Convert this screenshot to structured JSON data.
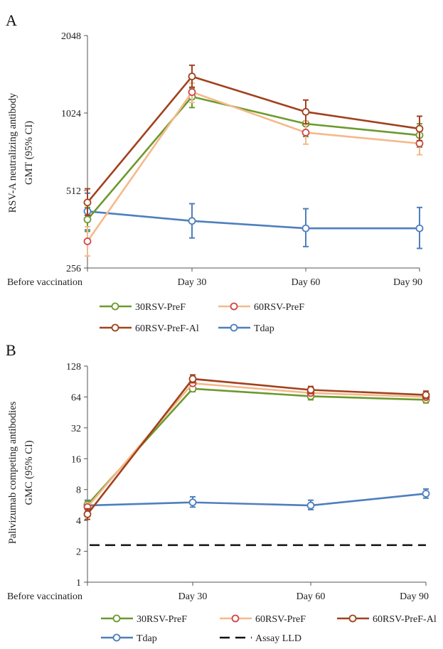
{
  "chart_data": [
    {
      "panel": "A",
      "type": "line",
      "y_scale": "log2",
      "ylabel": [
        "RSV-A neutralizing antibody",
        "GMT (95% CI)"
      ],
      "xlabel": "",
      "categories": [
        "Before vaccination",
        "Day 30",
        "Day 60",
        "Day 90"
      ],
      "y_ticks": [
        256,
        512,
        1024,
        2048
      ],
      "ylim": [
        256,
        2048
      ],
      "grid": false,
      "legend_position": "bottom",
      "series": [
        {
          "name": "30RSV-PreF",
          "color": "#6b9a2e",
          "values": [
            395,
            1185,
            930,
            840
          ],
          "ci_low": [
            355,
            1075,
            830,
            755
          ],
          "ci_high": [
            440,
            1280,
            1025,
            930
          ]
        },
        {
          "name": "60RSV-PreF",
          "color": "#f5b98a",
          "marker_color": "#d0454b",
          "values": [
            325,
            1235,
            860,
            780
          ],
          "ci_low": [
            285,
            1125,
            775,
            705
          ],
          "ci_high": [
            370,
            1340,
            955,
            865
          ]
        },
        {
          "name": "60RSV-PreF-Al",
          "color": "#a0421e",
          "values": [
            460,
            1420,
            1035,
            890
          ],
          "ci_low": [
            410,
            1290,
            930,
            800
          ],
          "ci_high": [
            520,
            1570,
            1150,
            995
          ]
        },
        {
          "name": "Tdap",
          "color": "#4e7fbd",
          "values": [
            425,
            390,
            365,
            365
          ],
          "ci_low": [
            360,
            335,
            310,
            305
          ],
          "ci_high": [
            500,
            455,
            435,
            440
          ]
        }
      ]
    },
    {
      "panel": "B",
      "type": "line",
      "y_scale": "log2",
      "ylabel": [
        "Palivizumab competing antibodies",
        "GMC (95% CI)"
      ],
      "xlabel": "",
      "categories": [
        "Before vaccination",
        "Day 30",
        "Day 60",
        "Day 90"
      ],
      "y_ticks": [
        1,
        2,
        4,
        8,
        16,
        32,
        64,
        128
      ],
      "ylim": [
        1,
        128
      ],
      "grid": false,
      "legend_position": "bottom",
      "reference_line": {
        "name": "Assay LLD",
        "value": 2.3,
        "color": "#111111"
      },
      "series": [
        {
          "name": "30RSV-PreF",
          "color": "#6b9a2e",
          "values": [
            5.7,
            77,
            65,
            60
          ],
          "ci_low": [
            5.2,
            72,
            60,
            56
          ],
          "ci_high": [
            6.2,
            83,
            70,
            65
          ]
        },
        {
          "name": "60RSV-PreF",
          "color": "#f5b98a",
          "marker_color": "#d0454b",
          "values": [
            5.4,
            87,
            70,
            64
          ],
          "ci_low": [
            4.9,
            81,
            65,
            59
          ],
          "ci_high": [
            5.9,
            94,
            76,
            69
          ]
        },
        {
          "name": "60RSV-PreF-Al",
          "color": "#a0421e",
          "values": [
            4.6,
            96,
            75,
            67
          ],
          "ci_low": [
            4.1,
            88,
            69,
            62
          ],
          "ci_high": [
            5.2,
            105,
            81,
            73
          ]
        },
        {
          "name": "Tdap",
          "color": "#4e7fbd",
          "values": [
            5.6,
            6.0,
            5.6,
            7.3
          ],
          "ci_low": [
            5.0,
            5.4,
            5.1,
            6.6
          ],
          "ci_high": [
            6.3,
            6.8,
            6.3,
            8.1
          ]
        }
      ]
    }
  ]
}
